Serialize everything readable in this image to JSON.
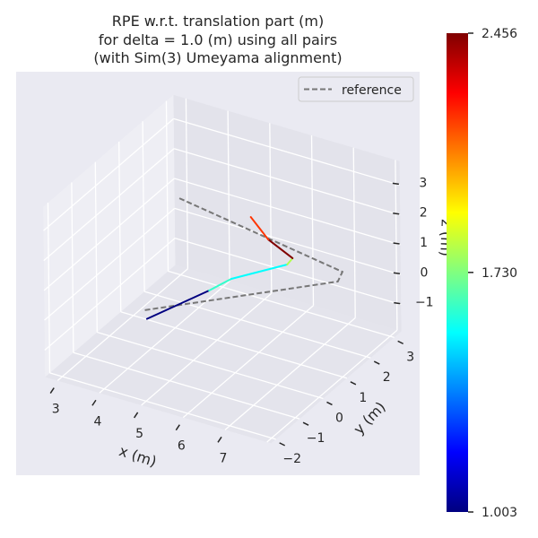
{
  "chart_data": {
    "type": "line",
    "projection": "3d",
    "title": [
      "RPE w.r.t. translation part (m)",
      "for delta = 1.0 (m) using all pairs",
      "(with Sim(3) Umeyama alignment)"
    ],
    "xlabel": "x (m)",
    "ylabel": "y (m)",
    "zlabel": "z (m)",
    "xlim": [
      2.7,
      8.1
    ],
    "ylim": [
      -2.2,
      3.3
    ],
    "zlim": [
      -1.9,
      3.8
    ],
    "xticks": [
      "3",
      "4",
      "5",
      "6",
      "7"
    ],
    "xtick_values": [
      3,
      4,
      5,
      6,
      7
    ],
    "yticks": [
      "−2",
      "−1",
      "0",
      "1",
      "2",
      "3"
    ],
    "ytick_values": [
      -2,
      -1,
      0,
      1,
      2,
      3
    ],
    "zticks": [
      "−1",
      "0",
      "1",
      "2",
      "3"
    ],
    "ztick_values": [
      -1,
      0,
      1,
      2,
      3
    ],
    "grid": true,
    "legend": {
      "placement": "top-right",
      "entries": [
        "reference"
      ]
    },
    "reference": {
      "name": "reference",
      "style": "dashed",
      "color": "#777777",
      "points": [
        [
          3.95,
          1.32,
          2.2
        ],
        [
          7.19,
          2.45,
          0.3
        ],
        [
          7.06,
          2.48,
          -0.1
        ],
        [
          4.26,
          -0.77,
          0.0
        ]
      ]
    },
    "trajectory": {
      "colormap": "jet",
      "points": [
        [
          4.31,
          -0.72,
          -0.3
        ],
        [
          5.08,
          0.55,
          0.1
        ],
        [
          5.42,
          0.89,
          0.4
        ],
        [
          6.43,
          1.47,
          0.9
        ],
        [
          6.52,
          1.54,
          1.1
        ],
        [
          6.01,
          1.42,
          1.6
        ],
        [
          5.61,
          1.4,
          2.2
        ]
      ],
      "segment_values": [
        1.003,
        1.62,
        1.55,
        1.8,
        2.456,
        2.2
      ]
    },
    "colorbar": {
      "min": 1.003,
      "max": 2.456,
      "ticks": [
        1.003,
        1.73,
        2.456
      ],
      "tick_labels": [
        "1.003",
        "1.730",
        "2.456"
      ]
    }
  },
  "colors": {
    "axes_bg": "#eaeaf2",
    "pane": "#e6e6ee",
    "grid": "#ffffff"
  }
}
